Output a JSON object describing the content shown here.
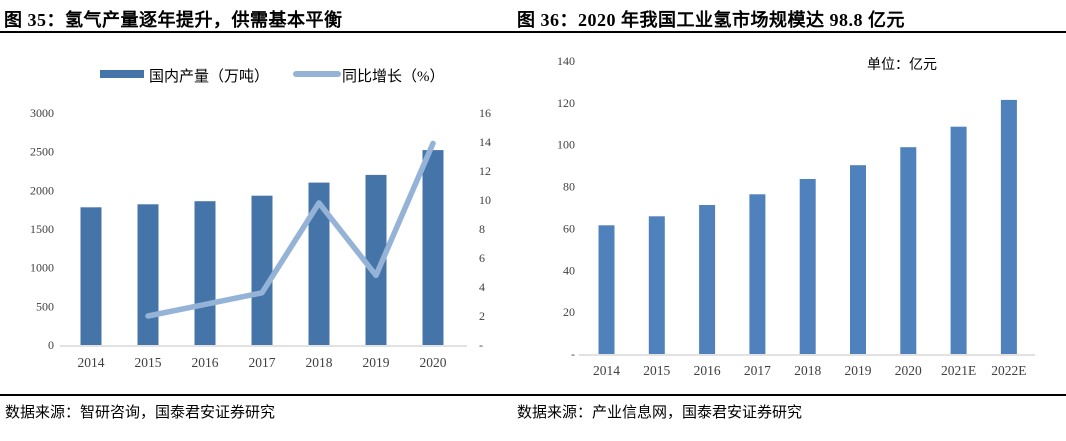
{
  "figures": {
    "left": {
      "title": "图 35：氢气产量逐年提升，供需基本平衡",
      "source": "数据来源：智研咨询，国泰君安证券研究"
    },
    "right": {
      "title": "图 36：2020 年我国工业氢市场规模达 98.8 亿元",
      "unit_note": "单位：亿元",
      "source": "数据来源：产业信息网，国泰君安证券研究"
    }
  },
  "chart_data": [
    {
      "type": "bar",
      "subtype": "bar+line-combo",
      "title": "图 35：氢气产量逐年提升，供需基本平衡",
      "categories": [
        "2014",
        "2015",
        "2016",
        "2017",
        "2018",
        "2019",
        "2020"
      ],
      "series": [
        {
          "name": "国内产量（万吨）",
          "type": "bar",
          "y_axis": "left",
          "color": "#4574a9",
          "values": [
            1780,
            1820,
            1860,
            1930,
            2100,
            2200,
            2520
          ]
        },
        {
          "name": "同比增长（%）",
          "type": "line",
          "y_axis": "right",
          "color": "#95b3d7",
          "values": [
            null,
            2.0,
            2.8,
            3.6,
            9.8,
            4.8,
            13.9
          ]
        }
      ],
      "left_axis": {
        "range": [
          0,
          3000
        ],
        "ticks": [
          "0",
          "500",
          "1000",
          "1500",
          "2000",
          "2500",
          "3000"
        ]
      },
      "right_axis": {
        "range": [
          0,
          16
        ],
        "ticks": [
          "-",
          "2",
          "4",
          "6",
          "8",
          "10",
          "12",
          "14",
          "16"
        ]
      },
      "legend_position": "top",
      "grid": false
    },
    {
      "type": "bar",
      "title": "图 36：2020 年我国工业氢市场规模达 98.8 亿元",
      "unit_note": "单位：亿元",
      "categories": [
        "2014",
        "2015",
        "2016",
        "2017",
        "2018",
        "2019",
        "2020",
        "2021E",
        "2022E"
      ],
      "values": [
        61.5,
        65.8,
        71.2,
        76.3,
        83.6,
        90.2,
        98.8,
        108.6,
        121.4
      ],
      "y_axis": {
        "range": [
          0,
          140
        ],
        "ticks": [
          "-",
          "20",
          "40",
          "60",
          "80",
          "100",
          "120",
          "140"
        ]
      },
      "bar_color": "#4f81bd",
      "grid": false
    }
  ],
  "style": {
    "axis_line_color": "#d9d9d9",
    "tick_color": "#404040",
    "rule_color": "#000000"
  }
}
